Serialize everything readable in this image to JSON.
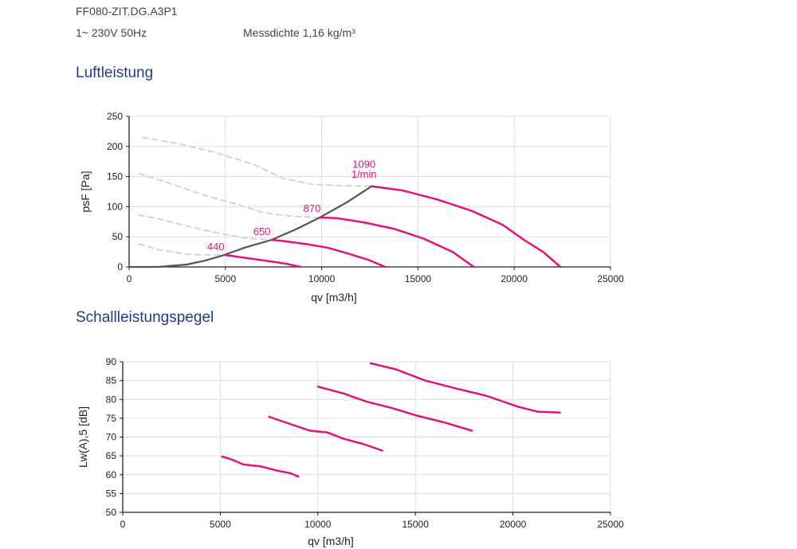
{
  "header": {
    "model": "FF080-ZIT.DG.A3P1",
    "supply": "1~ 230V 50Hz",
    "density": "Messdichte 1,16 kg/m³"
  },
  "sections": {
    "air": "Luftleistung",
    "sound": "Schallleistungspegel"
  },
  "colors": {
    "curve": "#e0127f",
    "system": "#555555",
    "dashed": "#c8d6e8",
    "grid": "#d7dfe8"
  },
  "chart_data": [
    {
      "type": "line",
      "xlabel": "qv [m3/h]",
      "ylabel": "psF [Pa]",
      "xlim": [
        0,
        25000
      ],
      "ylim": [
        0,
        250
      ],
      "xticks": [
        0,
        5000,
        10000,
        15000,
        20000,
        25000
      ],
      "yticks": [
        0,
        50,
        100,
        150,
        200,
        250
      ],
      "grid": true,
      "series": [
        {
          "name": "440",
          "style": "curve",
          "x": [
            4950,
            5600,
            6500,
            7400,
            8200,
            8900
          ],
          "y": [
            20,
            17,
            13,
            9,
            5,
            0
          ]
        },
        {
          "name": "650",
          "style": "curve",
          "x": [
            7400,
            8000,
            9200,
            10300,
            11400,
            12400,
            13300
          ],
          "y": [
            45,
            43,
            38,
            32,
            22,
            12,
            0
          ]
        },
        {
          "name": "870",
          "style": "curve",
          "x": [
            9900,
            10800,
            12200,
            13800,
            15300,
            16800,
            17900
          ],
          "y": [
            82,
            81,
            74,
            63,
            47,
            25,
            0
          ]
        },
        {
          "name": "1090",
          "style": "curve",
          "x": [
            12600,
            14200,
            16000,
            17800,
            19400,
            20500,
            21500,
            22400
          ],
          "y": [
            134,
            127,
            112,
            93,
            70,
            45,
            25,
            0
          ]
        },
        {
          "style": "system",
          "x": [
            0,
            1500,
            3000,
            4000,
            4950,
            6000,
            7400,
            8700,
            9900,
            11300,
            12600
          ],
          "y": [
            0,
            0,
            4,
            11,
            20,
            32,
            45,
            63,
            82,
            107,
            134
          ]
        },
        {
          "style": "dashed",
          "x": [
            500,
            1500,
            3000,
            4000,
            4950
          ],
          "y": [
            38,
            29,
            21,
            20,
            20
          ]
        },
        {
          "style": "dashed",
          "x": [
            500,
            1500,
            3000,
            4500,
            6000,
            7400
          ],
          "y": [
            86,
            80,
            68,
            57,
            48,
            45
          ]
        },
        {
          "style": "dashed",
          "x": [
            500,
            2000,
            4000,
            5500,
            7000,
            8500,
            9900
          ],
          "y": [
            155,
            140,
            118,
            105,
            90,
            84,
            82
          ]
        },
        {
          "style": "dashed",
          "x": [
            700,
            2500,
            4500,
            6500,
            8000,
            9500,
            11000,
            12600
          ],
          "y": [
            215,
            205,
            190,
            170,
            147,
            137,
            135,
            134
          ]
        }
      ],
      "annotations": [
        {
          "text": "440",
          "x": 4500,
          "y": 28
        },
        {
          "text": "650",
          "x": 6900,
          "y": 53
        },
        {
          "text": "870",
          "x": 9500,
          "y": 91
        },
        {
          "text": "1090",
          "x": 12200,
          "y": 165
        },
        {
          "text": "1/min",
          "x": 12200,
          "y": 148
        }
      ]
    },
    {
      "type": "line",
      "xlabel": "qv [m3/h]",
      "ylabel": "Lw(A),5 [dB]",
      "xlim": [
        0,
        25000
      ],
      "ylim": [
        50,
        90
      ],
      "xticks": [
        0,
        5000,
        10000,
        15000,
        20000,
        25000
      ],
      "yticks": [
        50,
        55,
        60,
        65,
        70,
        75,
        80,
        85,
        90
      ],
      "grid": true,
      "series": [
        {
          "style": "curve",
          "x": [
            5100,
            5500,
            6200,
            7100,
            7900,
            8600,
            9000
          ],
          "y": [
            64.8,
            64.2,
            62.7,
            62.2,
            61.1,
            60.4,
            59.5
          ]
        },
        {
          "style": "curve",
          "x": [
            7500,
            8500,
            9600,
            10500,
            11300,
            12300,
            13300
          ],
          "y": [
            75.4,
            73.6,
            71.7,
            71.2,
            69.6,
            68.2,
            66.4
          ]
        },
        {
          "style": "curve",
          "x": [
            10000,
            11300,
            12500,
            13800,
            15000,
            16400,
            17900
          ],
          "y": [
            83.4,
            81.6,
            79.4,
            77.7,
            75.8,
            74.0,
            71.7
          ]
        },
        {
          "style": "curve",
          "x": [
            12700,
            14000,
            15500,
            17000,
            18600,
            20300,
            21300,
            22400
          ],
          "y": [
            89.6,
            88.0,
            85.0,
            83.0,
            81.0,
            78.0,
            76.7,
            76.5
          ]
        }
      ]
    }
  ]
}
